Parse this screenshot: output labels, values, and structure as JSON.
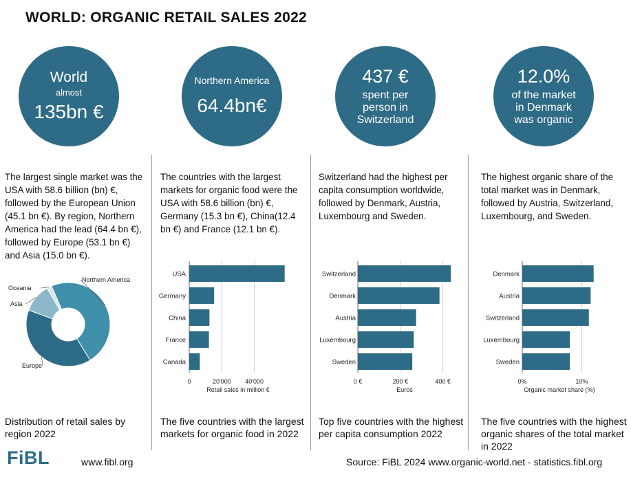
{
  "title": "WORLD: ORGANIC RETAIL SALES 2022",
  "colors": {
    "circle": "#2e6b86",
    "bar": "#2e6b86",
    "grid": "#b9c6d0"
  },
  "columns": [
    {
      "circle": {
        "line1": "World",
        "line2": "almost",
        "line3": "135bn €"
      },
      "description": "The largest single market was the USA with 58.6 billion (bn) €, followed by the European Union (45.1 bn €). By region, Northern America  had the lead (64.4 bn €), followed by Europe (53.1 bn €) and Asia (15.0 bn €).",
      "caption": "Distribution of retail sales by region 2022"
    },
    {
      "circle": {
        "line1": "Northern America",
        "line2": "64.4bn€"
      },
      "description": "The countries with the largest markets for organic food were the USA with 58.6 billion (bn) €, Germany (15.3 bn €), China(12.4 bn €) and France (12.1 bn €).",
      "caption": "The five countries with the largest markets for organic food in 2022"
    },
    {
      "circle": {
        "line1": "437 €",
        "line2": "spent per",
        "line3": "person in",
        "line4": "Switzerland"
      },
      "description": "Switzerland had the highest per capita consumption worldwide, followed by Denmark, Austria, Luxembourg and Sweden.",
      "caption": "Top five countries with the highest per capita consumption 2022"
    },
    {
      "circle": {
        "line1": "12.0%",
        "line2": "of the market",
        "line3": "in Denmark",
        "line4": "was organic"
      },
      "description": "The highest organic share of the total market was in Denmark, followed by Austria, Switzerland, Luxembourg, and Sweden.",
      "caption": "The five countries with the highest organic shares of the total market in 2022"
    }
  ],
  "chart_data": [
    {
      "type": "pie",
      "donut": true,
      "labels": [
        "Northern America",
        "Europe",
        "Asia",
        "Oceania"
      ],
      "values": [
        64.4,
        53.1,
        15.0,
        2.5
      ],
      "colors": [
        "#3f8fab",
        "#2e6b86",
        "#8cb8c9",
        "#d8e6ed"
      ]
    },
    {
      "type": "bar",
      "orientation": "horizontal",
      "categories": [
        "USA",
        "Germany",
        "China",
        "France",
        "Canada"
      ],
      "values": [
        58600,
        15300,
        12400,
        12100,
        6500
      ],
      "xlim": [
        0,
        60000
      ],
      "ticks": [
        0,
        20000,
        40000
      ],
      "tick_labels": [
        "0",
        "20'000",
        "40'000"
      ],
      "xlabel": "Retail sales in million €",
      "grid": true
    },
    {
      "type": "bar",
      "orientation": "horizontal",
      "categories": [
        "Switzerland",
        "Denmark",
        "Austria",
        "Luxembourg",
        "Sweden"
      ],
      "values": [
        437,
        384,
        274,
        263,
        256
      ],
      "xlim": [
        0,
        440
      ],
      "ticks": [
        0,
        200,
        400
      ],
      "tick_labels": [
        "0 €",
        "200 €",
        "400 €"
      ],
      "xlabel": "Euros",
      "grid": true
    },
    {
      "type": "bar",
      "orientation": "horizontal",
      "categories": [
        "Denmark",
        "Austria",
        "Switzerland",
        "Luxembourg",
        "Sweden"
      ],
      "values": [
        12.0,
        11.5,
        11.2,
        8.0,
        8.0
      ],
      "xlim": [
        0,
        12.5
      ],
      "ticks": [
        0,
        10
      ],
      "tick_labels": [
        "0%",
        "10%"
      ],
      "xlabel": "Organic market share (%)",
      "grid": true
    }
  ],
  "footer": {
    "logo": "FiBL",
    "website": "www.fibl.org",
    "source": "Source: FiBL 2024 www.organic-world.net - statistics.fibl.org"
  }
}
